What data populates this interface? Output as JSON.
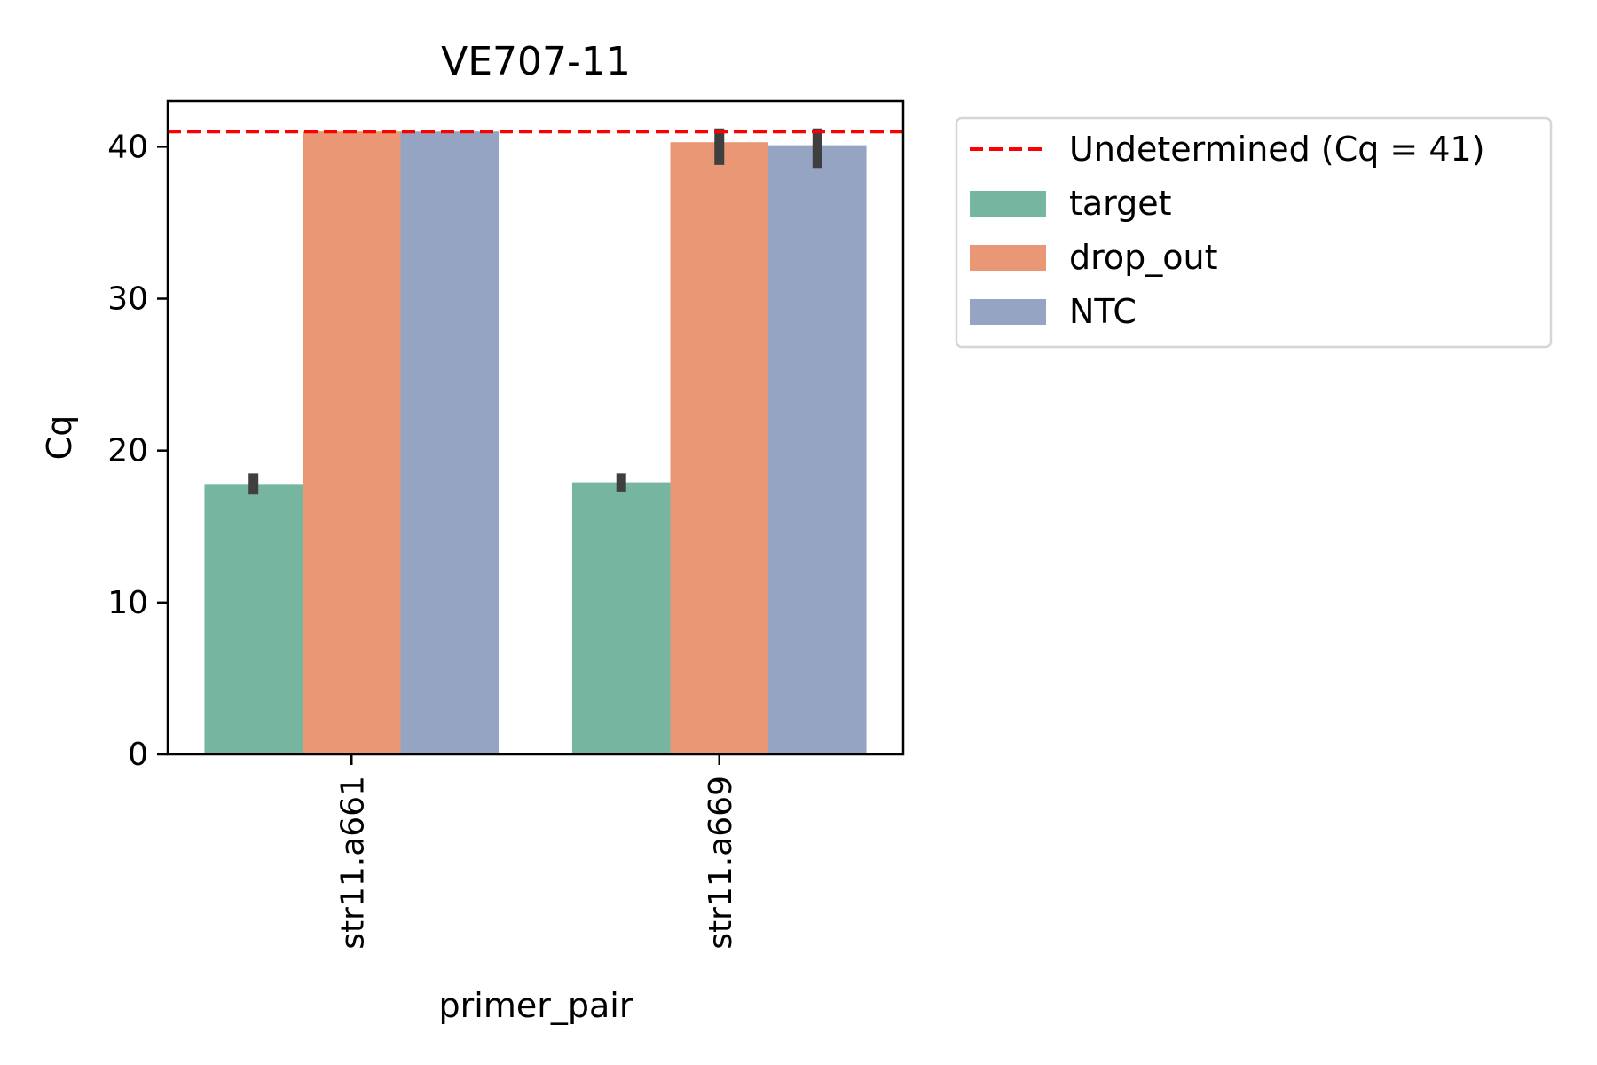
{
  "chart_data": {
    "type": "bar",
    "title": "VE707-11",
    "xlabel": "primer_pair",
    "ylabel": "Cq",
    "categories": [
      "str11.a661",
      "str11.a669"
    ],
    "ylim": [
      0,
      43
    ],
    "yticks": [
      0,
      10,
      20,
      30,
      40
    ],
    "grid": false,
    "series": [
      {
        "name": "target",
        "color": "#76b6a0",
        "values": [
          17.8,
          17.9
        ],
        "err_low": [
          17.1,
          17.3
        ],
        "err_high": [
          18.5,
          18.5
        ]
      },
      {
        "name": "drop_out",
        "color": "#e99775",
        "values": [
          41.0,
          40.3
        ],
        "err_low": [
          41.0,
          38.8
        ],
        "err_high": [
          41.0,
          41.2
        ]
      },
      {
        "name": "NTC",
        "color": "#95a4c3",
        "values": [
          41.0,
          40.1
        ],
        "err_low": [
          41.0,
          38.6
        ],
        "err_high": [
          41.0,
          41.2
        ]
      }
    ],
    "reference_line": {
      "value": 41,
      "label": "Undetermined (Cq = 41)",
      "color": "#ff0000",
      "style": "dashed"
    },
    "legend": {
      "placement": "outside-right-top"
    }
  }
}
